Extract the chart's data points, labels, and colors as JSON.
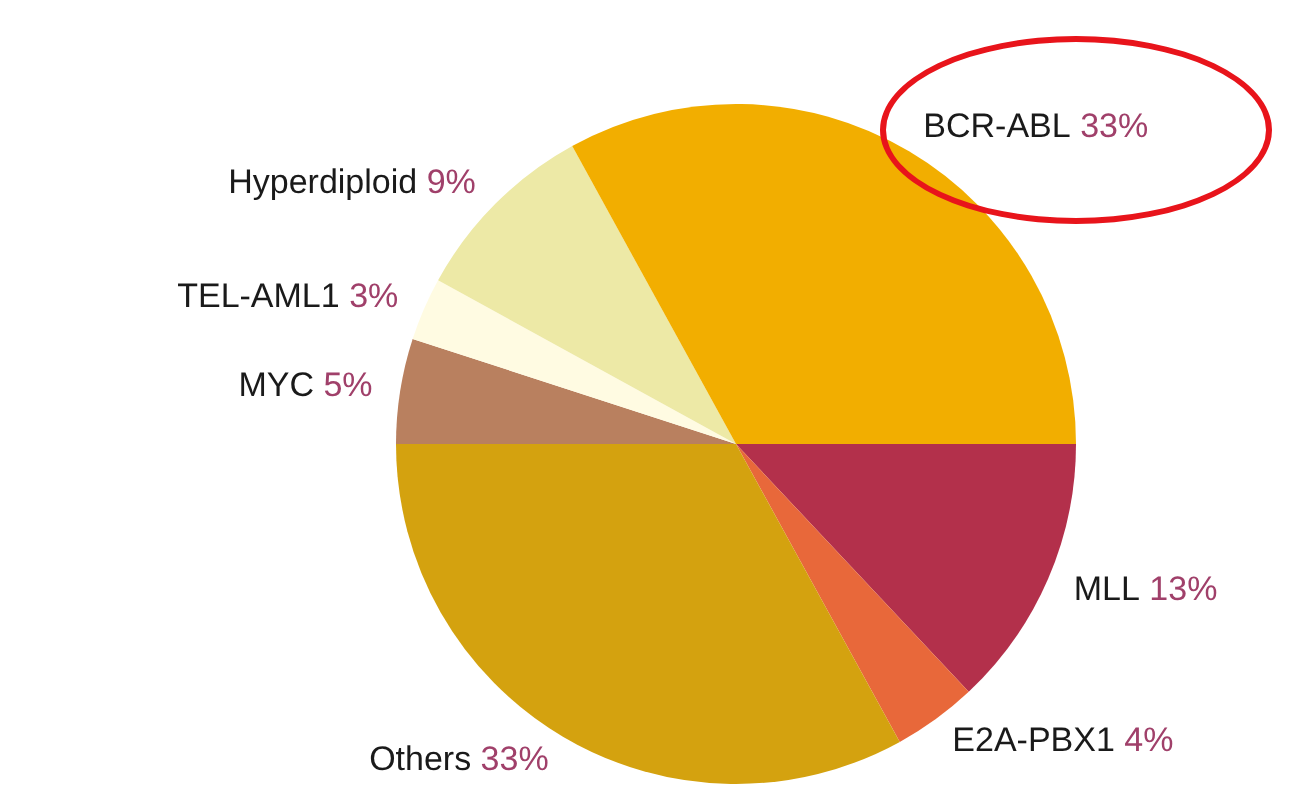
{
  "chart_data": {
    "type": "pie",
    "categories": [
      "MLL",
      "E2A-PBX1",
      "Others",
      "MYC",
      "TEL-AML1",
      "Hyperdiploid",
      "BCR-ABL"
    ],
    "values": [
      13,
      4,
      33,
      5,
      3,
      9,
      33
    ],
    "value_labels": [
      "13%",
      "4%",
      "33%",
      "5%",
      "3%",
      "9%",
      "33%"
    ],
    "colors": [
      "#b3304b",
      "#e8683a",
      "#d4a20f",
      "#b9805f",
      "#fffbe2",
      "#ede9a6",
      "#f2ae00"
    ],
    "legend": false
  }
}
